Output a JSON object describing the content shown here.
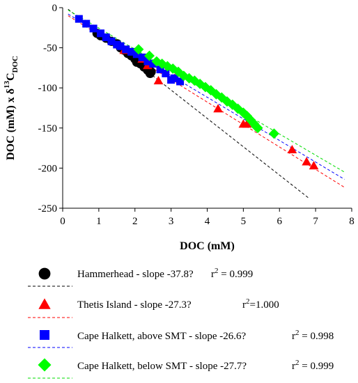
{
  "chart_data": {
    "type": "scatter",
    "xlabel": "DOC (mM)",
    "ylabel_parts": {
      "main": "DOC (mM) x δ",
      "sup": "13",
      "after": "C",
      "sub": "DOC"
    },
    "xlim": [
      0,
      8
    ],
    "ylim": [
      -250,
      0
    ],
    "xticks": [
      "0",
      "1",
      "2",
      "3",
      "4",
      "5",
      "6",
      "7",
      "8"
    ],
    "yticks": [
      "0",
      "-50",
      "-100",
      "-150",
      "-200",
      "-250"
    ],
    "grid": false,
    "legend_position": "bottom",
    "series": [
      {
        "label": "Hammerhead - slope -37.8?",
        "r2": "r² = 0.999",
        "r2_base": "r",
        "r2_sup": "2",
        "r2_rest": " = 0.999",
        "marker": "circle",
        "color": "#000000",
        "line_color": "#000000",
        "points": [
          [
            0.95,
            -32
          ],
          [
            1.05,
            -35
          ],
          [
            1.2,
            -38
          ],
          [
            1.35,
            -42
          ],
          [
            1.5,
            -45
          ],
          [
            1.6,
            -50
          ],
          [
            1.7,
            -53
          ],
          [
            1.8,
            -57
          ],
          [
            1.9,
            -60
          ],
          [
            2.0,
            -64
          ],
          [
            2.05,
            -68
          ],
          [
            2.15,
            -70
          ],
          [
            2.25,
            -74
          ],
          [
            2.35,
            -78
          ],
          [
            2.42,
            -82
          ],
          [
            2.45,
            -80
          ]
        ],
        "fit": {
          "x": [
            0.15,
            6.8
          ],
          "y": [
            -2,
            -237
          ]
        }
      },
      {
        "label": "Thetis Island - slope -27.3?",
        "r2": "r²=1.000",
        "r2_base": "r",
        "r2_sup": "2",
        "r2_rest": "=1.000",
        "marker": "triangle",
        "color": "#ff0000",
        "line_color": "#ff0000",
        "points": [
          [
            1.7,
            -53
          ],
          [
            2.2,
            -64
          ],
          [
            2.35,
            -72
          ],
          [
            2.65,
            -91
          ],
          [
            3.1,
            -88
          ],
          [
            4.3,
            -126
          ],
          [
            5.0,
            -145
          ],
          [
            5.1,
            -145
          ],
          [
            6.35,
            -177
          ],
          [
            6.75,
            -192
          ],
          [
            6.95,
            -197
          ]
        ],
        "fit": {
          "x": [
            0.15,
            7.8
          ],
          "y": [
            -10,
            -224
          ]
        }
      },
      {
        "label": "Cape Halkett, above SMT - slope -26.6?",
        "r2": "r² = 0.998",
        "r2_base": "r",
        "r2_sup": "2",
        "r2_rest": " = 0.998",
        "marker": "square",
        "color": "#0000ff",
        "line_color": "#0000ff",
        "points": [
          [
            0.45,
            -14
          ],
          [
            0.65,
            -20
          ],
          [
            0.85,
            -26
          ],
          [
            1.05,
            -32
          ],
          [
            1.2,
            -37
          ],
          [
            1.35,
            -42
          ],
          [
            1.5,
            -46
          ],
          [
            1.6,
            -48
          ],
          [
            1.75,
            -52
          ],
          [
            1.9,
            -55
          ],
          [
            2.05,
            -58
          ],
          [
            2.2,
            -62
          ],
          [
            2.35,
            -67
          ],
          [
            2.5,
            -70
          ],
          [
            2.7,
            -77
          ],
          [
            2.85,
            -82
          ],
          [
            3.0,
            -90
          ],
          [
            3.1,
            -88
          ],
          [
            3.25,
            -92
          ]
        ],
        "fit": {
          "x": [
            0.15,
            7.8
          ],
          "y": [
            -8,
            -214
          ]
        }
      },
      {
        "label": "Cape Halkett, below SMT - slope -27.7?",
        "r2": "r² = 0.999",
        "r2_base": "r",
        "r2_sup": "2",
        "r2_rest": " = 0.999",
        "marker": "diamond",
        "color": "#00ff00",
        "line_color": "#00dd00",
        "points": [
          [
            2.1,
            -52
          ],
          [
            2.4,
            -60
          ],
          [
            2.6,
            -67
          ],
          [
            2.75,
            -70
          ],
          [
            2.9,
            -73
          ],
          [
            3.05,
            -76
          ],
          [
            3.2,
            -80
          ],
          [
            3.35,
            -85
          ],
          [
            3.5,
            -88
          ],
          [
            3.65,
            -91
          ],
          [
            3.8,
            -95
          ],
          [
            3.95,
            -99
          ],
          [
            4.1,
            -103
          ],
          [
            4.25,
            -108
          ],
          [
            4.4,
            -112
          ],
          [
            4.55,
            -117
          ],
          [
            4.7,
            -121
          ],
          [
            4.85,
            -126
          ],
          [
            5.0,
            -131
          ],
          [
            5.1,
            -135
          ],
          [
            5.2,
            -140
          ],
          [
            5.3,
            -145
          ],
          [
            5.4,
            -150
          ],
          [
            5.35,
            -148
          ],
          [
            5.85,
            -157
          ]
        ],
        "fit": {
          "x": [
            0.15,
            7.8
          ],
          "y": [
            -3,
            -205
          ]
        }
      }
    ]
  }
}
